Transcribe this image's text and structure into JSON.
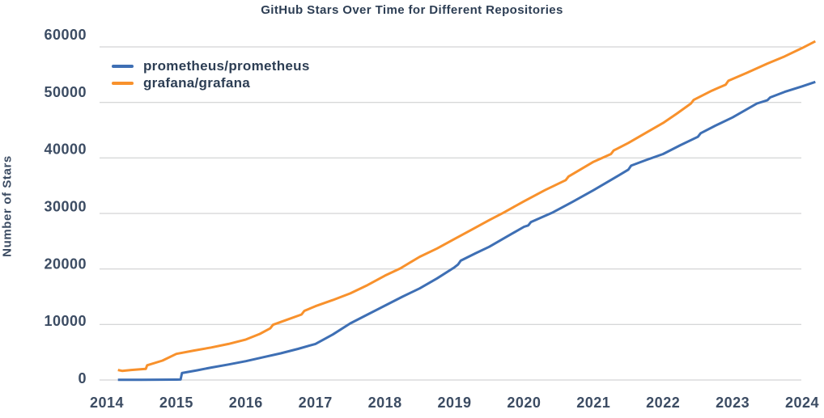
{
  "chart": {
    "background": "#ffffff",
    "text_color": "#2d3e54",
    "gridline_color": "#c9cacb"
  },
  "chart_data": {
    "type": "line",
    "title": "GitHub Stars Over Time for Different Repositories",
    "xlabel": "",
    "ylabel": "Number of Stars",
    "xlim": [
      2013.9,
      2024.25
    ],
    "ylim": [
      0,
      62000
    ],
    "grid": "horizontal",
    "legend_position": "top-left",
    "xticks": [
      2014,
      2015,
      2016,
      2017,
      2018,
      2019,
      2020,
      2021,
      2022,
      2023,
      2024
    ],
    "yticks": [
      0,
      10000,
      20000,
      30000,
      40000,
      50000,
      60000
    ],
    "series": [
      {
        "name": "prometheus/prometheus",
        "color": "#3e6fb4",
        "points": [
          [
            2014.16,
            30
          ],
          [
            2014.5,
            45
          ],
          [
            2015.0,
            70
          ],
          [
            2015.06,
            90
          ],
          [
            2015.08,
            1250
          ],
          [
            2015.3,
            1750
          ],
          [
            2015.5,
            2250
          ],
          [
            2015.75,
            2800
          ],
          [
            2016.0,
            3400
          ],
          [
            2016.25,
            4100
          ],
          [
            2016.5,
            4800
          ],
          [
            2016.75,
            5600
          ],
          [
            2017.0,
            6500
          ],
          [
            2017.25,
            8200
          ],
          [
            2017.5,
            10200
          ],
          [
            2017.75,
            11800
          ],
          [
            2018.0,
            13400
          ],
          [
            2018.25,
            15000
          ],
          [
            2018.5,
            16500
          ],
          [
            2018.75,
            18300
          ],
          [
            2019.0,
            20300
          ],
          [
            2019.05,
            20800
          ],
          [
            2019.09,
            21500
          ],
          [
            2019.3,
            22800
          ],
          [
            2019.5,
            24000
          ],
          [
            2019.75,
            25800
          ],
          [
            2020.0,
            27600
          ],
          [
            2020.06,
            27850
          ],
          [
            2020.1,
            28450
          ],
          [
            2020.4,
            30100
          ],
          [
            2020.7,
            32100
          ],
          [
            2021.0,
            34200
          ],
          [
            2021.3,
            36400
          ],
          [
            2021.5,
            37900
          ],
          [
            2021.54,
            38600
          ],
          [
            2021.75,
            39600
          ],
          [
            2022.0,
            40700
          ],
          [
            2022.25,
            42300
          ],
          [
            2022.5,
            43800
          ],
          [
            2022.54,
            44450
          ],
          [
            2022.75,
            45800
          ],
          [
            2023.0,
            47300
          ],
          [
            2023.35,
            49800
          ],
          [
            2023.5,
            50400
          ],
          [
            2023.54,
            50900
          ],
          [
            2023.75,
            51900
          ],
          [
            2024.0,
            52900
          ],
          [
            2024.19,
            53700
          ]
        ]
      },
      {
        "name": "grafana/grafana",
        "color": "#f8912c",
        "points": [
          [
            2014.16,
            1800
          ],
          [
            2014.22,
            1650
          ],
          [
            2014.35,
            1800
          ],
          [
            2014.5,
            1950
          ],
          [
            2014.56,
            2000
          ],
          [
            2014.58,
            2650
          ],
          [
            2014.8,
            3500
          ],
          [
            2015.0,
            4700
          ],
          [
            2015.25,
            5300
          ],
          [
            2015.5,
            5850
          ],
          [
            2015.75,
            6500
          ],
          [
            2016.0,
            7300
          ],
          [
            2016.2,
            8300
          ],
          [
            2016.35,
            9300
          ],
          [
            2016.39,
            9950
          ],
          [
            2016.6,
            10900
          ],
          [
            2016.8,
            11800
          ],
          [
            2016.84,
            12450
          ],
          [
            2017.0,
            13300
          ],
          [
            2017.25,
            14400
          ],
          [
            2017.5,
            15600
          ],
          [
            2017.75,
            17100
          ],
          [
            2018.0,
            18800
          ],
          [
            2018.22,
            20100
          ],
          [
            2018.5,
            22200
          ],
          [
            2018.75,
            23700
          ],
          [
            2019.0,
            25400
          ],
          [
            2019.25,
            27100
          ],
          [
            2019.5,
            28800
          ],
          [
            2019.7,
            30100
          ],
          [
            2020.0,
            32200
          ],
          [
            2020.3,
            34200
          ],
          [
            2020.6,
            36000
          ],
          [
            2020.64,
            36650
          ],
          [
            2021.0,
            39300
          ],
          [
            2021.25,
            40700
          ],
          [
            2021.29,
            41350
          ],
          [
            2021.5,
            42700
          ],
          [
            2021.75,
            44500
          ],
          [
            2022.0,
            46300
          ],
          [
            2022.2,
            48000
          ],
          [
            2022.4,
            49800
          ],
          [
            2022.44,
            50450
          ],
          [
            2022.7,
            52100
          ],
          [
            2022.9,
            53200
          ],
          [
            2022.94,
            53900
          ],
          [
            2023.2,
            55300
          ],
          [
            2023.5,
            57000
          ],
          [
            2023.75,
            58300
          ],
          [
            2024.0,
            59800
          ],
          [
            2024.19,
            61000
          ]
        ]
      }
    ]
  }
}
